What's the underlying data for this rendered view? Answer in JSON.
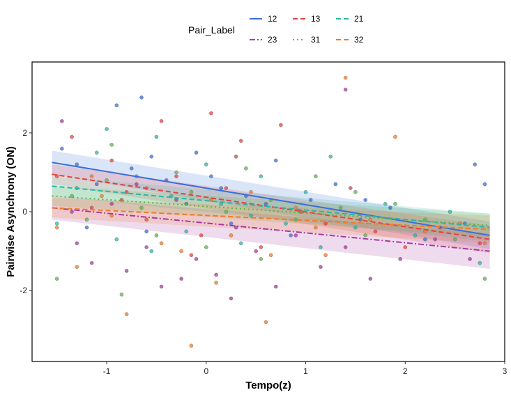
{
  "chart_data": {
    "type": "scatter",
    "xlabel": "Tempo(z)",
    "ylabel": "Pairwise Asynchrony (ON)",
    "xlim": [
      -1.75,
      3.0
    ],
    "ylim": [
      -3.8,
      3.8
    ],
    "xticks": [
      -1,
      0,
      1,
      2,
      3
    ],
    "yticks": [
      -2,
      0,
      2
    ],
    "grid": false,
    "legend": {
      "title": "Pair_Label",
      "position": "top"
    },
    "series": [
      {
        "name": "12",
        "color": "#3a6fd8",
        "dash": "solid",
        "fit": {
          "x": [
            -1.55,
            2.85
          ],
          "y": [
            1.25,
            -0.6
          ]
        },
        "ci": {
          "lower": [
            0.95,
            -0.95
          ],
          "upper": [
            1.55,
            -0.25
          ]
        },
        "points": [
          [
            -1.45,
            1.6
          ],
          [
            -1.3,
            1.2
          ],
          [
            -1.1,
            0.7
          ],
          [
            -0.9,
            2.7
          ],
          [
            -0.75,
            1.1
          ],
          [
            -0.55,
            1.4
          ],
          [
            -0.4,
            0.8
          ],
          [
            -0.2,
            0.2
          ],
          [
            -0.1,
            1.5
          ],
          [
            0.05,
            0.9
          ],
          [
            0.25,
            -0.3
          ],
          [
            0.4,
            0.4
          ],
          [
            0.6,
            0.2
          ],
          [
            0.85,
            -0.6
          ],
          [
            1.05,
            0.3
          ],
          [
            1.3,
            0.7
          ],
          [
            1.55,
            -0.2
          ],
          [
            1.85,
            0.1
          ],
          [
            2.2,
            -0.7
          ],
          [
            2.6,
            -0.3
          ],
          [
            2.8,
            0.7
          ],
          [
            -1.2,
            -0.4
          ],
          [
            -0.6,
            -0.5
          ],
          [
            0.15,
            0.6
          ],
          [
            0.7,
            1.3
          ],
          [
            2.7,
            1.2
          ],
          [
            -0.65,
            2.9
          ],
          [
            1.6,
            0.3
          ]
        ]
      },
      {
        "name": "13",
        "color": "#e8403f",
        "dash": "dashed",
        "fit": {
          "x": [
            -1.55,
            2.85
          ],
          "y": [
            0.95,
            -0.7
          ]
        },
        "ci": {
          "lower": [
            0.7,
            -1.05
          ],
          "upper": [
            1.2,
            -0.35
          ]
        },
        "points": [
          [
            -1.5,
            0.9
          ],
          [
            -1.35,
            1.9
          ],
          [
            -1.15,
            0.1
          ],
          [
            -0.95,
            1.3
          ],
          [
            -0.8,
            0.5
          ],
          [
            -0.6,
            -0.2
          ],
          [
            -0.45,
            2.3
          ],
          [
            -0.3,
            0.9
          ],
          [
            -0.15,
            -1.1
          ],
          [
            0.05,
            2.5
          ],
          [
            0.2,
            0.6
          ],
          [
            0.35,
            1.8
          ],
          [
            0.55,
            -0.9
          ],
          [
            0.75,
            2.2
          ],
          [
            0.95,
            0.0
          ],
          [
            1.2,
            -0.3
          ],
          [
            1.45,
            0.6
          ],
          [
            1.7,
            -0.5
          ],
          [
            2.0,
            -0.9
          ],
          [
            2.35,
            -0.4
          ],
          [
            2.75,
            -0.8
          ],
          [
            -0.85,
            0.3
          ],
          [
            0.3,
            1.4
          ],
          [
            -0.05,
            -0.6
          ]
        ]
      },
      {
        "name": "21",
        "color": "#2ab5a6",
        "dash": "dashed",
        "fit": {
          "x": [
            -1.55,
            2.85
          ],
          "y": [
            0.65,
            -0.4
          ]
        },
        "ci": {
          "lower": [
            0.4,
            -0.75
          ],
          "upper": [
            0.9,
            -0.05
          ]
        },
        "points": [
          [
            -1.5,
            -0.3
          ],
          [
            -1.3,
            0.6
          ],
          [
            -1.1,
            1.5
          ],
          [
            -0.9,
            -0.7
          ],
          [
            -0.7,
            0.9
          ],
          [
            -0.5,
            1.9
          ],
          [
            -0.35,
            0.4
          ],
          [
            -0.2,
            -0.5
          ],
          [
            0.0,
            1.2
          ],
          [
            0.15,
            0.2
          ],
          [
            0.35,
            -0.8
          ],
          [
            0.55,
            0.9
          ],
          [
            0.8,
            -0.3
          ],
          [
            1.0,
            0.5
          ],
          [
            1.25,
            1.4
          ],
          [
            1.5,
            -0.4
          ],
          [
            1.8,
            0.2
          ],
          [
            2.1,
            -0.6
          ],
          [
            2.45,
            0.0
          ],
          [
            2.75,
            -1.3
          ],
          [
            -1.0,
            2.1
          ],
          [
            0.45,
            -0.1
          ],
          [
            -0.55,
            -1.0
          ],
          [
            1.15,
            -0.9
          ]
        ]
      },
      {
        "name": "23",
        "color": "#a63aa0",
        "dash": "dashdot",
        "fit": {
          "x": [
            -1.55,
            2.85
          ],
          "y": [
            0.1,
            -1.0
          ]
        },
        "ci": {
          "lower": [
            -0.2,
            -1.45
          ],
          "upper": [
            0.4,
            -0.55
          ]
        },
        "points": [
          [
            -1.45,
            2.3
          ],
          [
            -1.3,
            -0.8
          ],
          [
            -1.15,
            -1.3
          ],
          [
            -0.95,
            0.2
          ],
          [
            -0.8,
            -1.5
          ],
          [
            -0.6,
            -0.9
          ],
          [
            -0.45,
            -1.9
          ],
          [
            -0.3,
            0.3
          ],
          [
            -0.1,
            -1.2
          ],
          [
            0.1,
            -1.6
          ],
          [
            0.3,
            -0.4
          ],
          [
            0.5,
            -1.0
          ],
          [
            0.7,
            -1.9
          ],
          [
            0.9,
            -0.6
          ],
          [
            1.15,
            -1.4
          ],
          [
            1.4,
            -0.9
          ],
          [
            1.65,
            -1.7
          ],
          [
            1.95,
            -1.2
          ],
          [
            2.3,
            -0.7
          ],
          [
            2.65,
            -1.2
          ],
          [
            -1.35,
            0.0
          ],
          [
            -0.7,
            0.7
          ],
          [
            0.25,
            -2.2
          ],
          [
            1.4,
            3.1
          ],
          [
            -0.25,
            -1.7
          ]
        ]
      },
      {
        "name": "31",
        "color": "#5fb34a",
        "dash": "dotted",
        "fit": {
          "x": [
            -1.55,
            2.85
          ],
          "y": [
            0.4,
            -0.35
          ]
        },
        "ci": {
          "lower": [
            0.15,
            -0.65
          ],
          "upper": [
            0.65,
            -0.05
          ]
        },
        "points": [
          [
            -1.5,
            -1.7
          ],
          [
            -1.35,
            0.4
          ],
          [
            -1.2,
            -0.2
          ],
          [
            -1.0,
            0.8
          ],
          [
            -0.85,
            -2.1
          ],
          [
            -0.65,
            0.1
          ],
          [
            -0.5,
            -0.6
          ],
          [
            -0.3,
            1.0
          ],
          [
            -0.15,
            0.5
          ],
          [
            0.0,
            -0.9
          ],
          [
            0.2,
            0.0
          ],
          [
            0.4,
            1.1
          ],
          [
            0.65,
            0.3
          ],
          [
            0.9,
            -0.2
          ],
          [
            1.1,
            0.9
          ],
          [
            1.35,
            0.1
          ],
          [
            1.6,
            -0.6
          ],
          [
            1.9,
            0.2
          ],
          [
            2.2,
            -0.2
          ],
          [
            2.5,
            -0.7
          ],
          [
            2.8,
            -1.7
          ],
          [
            -0.95,
            1.7
          ],
          [
            0.55,
            -1.2
          ],
          [
            1.5,
            0.5
          ]
        ]
      },
      {
        "name": "32",
        "color": "#f07b24",
        "dash": "dashed",
        "fit": {
          "x": [
            -1.55,
            2.85
          ],
          "y": [
            0.1,
            -0.45
          ]
        },
        "ci": {
          "lower": [
            -0.15,
            -0.8
          ],
          "upper": [
            0.35,
            -0.1
          ]
        },
        "points": [
          [
            -1.5,
            -0.4
          ],
          [
            -1.3,
            -1.4
          ],
          [
            -1.15,
            0.9
          ],
          [
            -0.95,
            -0.1
          ],
          [
            -0.8,
            -2.6
          ],
          [
            -0.6,
            0.6
          ],
          [
            -0.45,
            -0.8
          ],
          [
            -0.25,
            -1.0
          ],
          [
            -0.15,
            -3.4
          ],
          [
            0.05,
            0.3
          ],
          [
            0.25,
            -0.6
          ],
          [
            0.45,
            0.5
          ],
          [
            0.65,
            -1.1
          ],
          [
            0.9,
            0.1
          ],
          [
            1.1,
            -0.4
          ],
          [
            1.4,
            3.4
          ],
          [
            1.65,
            -0.2
          ],
          [
            1.9,
            1.9
          ],
          [
            2.2,
            -0.5
          ],
          [
            2.55,
            -0.3
          ],
          [
            2.8,
            -0.8
          ],
          [
            -1.05,
            0.4
          ],
          [
            0.1,
            -1.8
          ],
          [
            0.6,
            -2.8
          ],
          [
            1.2,
            -1.1
          ]
        ]
      }
    ]
  }
}
